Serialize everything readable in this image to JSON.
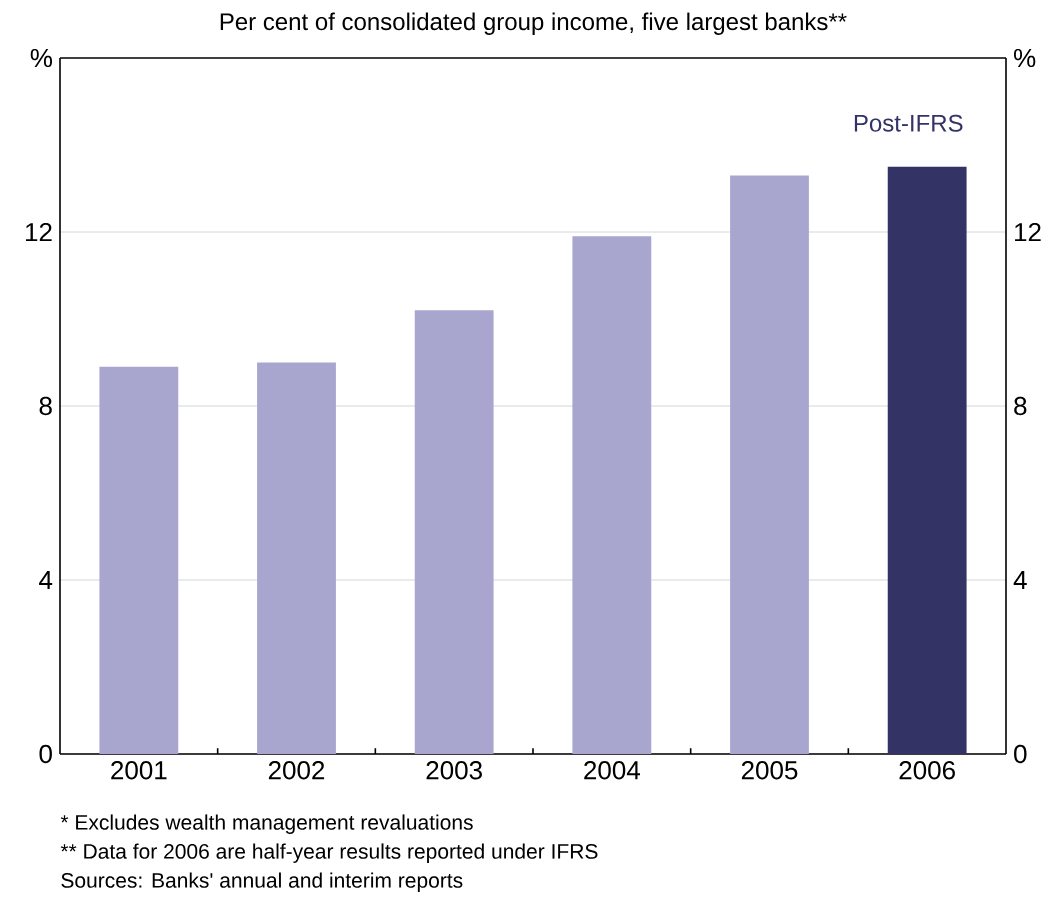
{
  "chart_data": {
    "type": "bar",
    "subtitle": "Per cent of consolidated group income, five largest banks**",
    "ylabel": "%",
    "y2label": "%",
    "categories": [
      "2001",
      "2002",
      "2003",
      "2004",
      "2005",
      "2006"
    ],
    "values": [
      8.9,
      9.0,
      10.2,
      11.9,
      13.3,
      13.5
    ],
    "colors": [
      "#a8a6cf",
      "#a8a6cf",
      "#a8a6cf",
      "#a8a6cf",
      "#a8a6cf",
      "#333366"
    ],
    "ylim": [
      0,
      16
    ],
    "yticks": [
      0,
      4,
      8,
      12
    ],
    "y2lim": [
      0,
      16
    ],
    "y2ticks": [
      0,
      4,
      8,
      12
    ],
    "grid": "y",
    "annotations": [
      {
        "text": "Post-IFRS",
        "x": "2006",
        "y": 13.5
      },
      "*   Excludes wealth management revaluations",
      "** Data for 2006 are half-year results reported under IFRS",
      "Sources: Banks' annual and interim reports"
    ]
  }
}
